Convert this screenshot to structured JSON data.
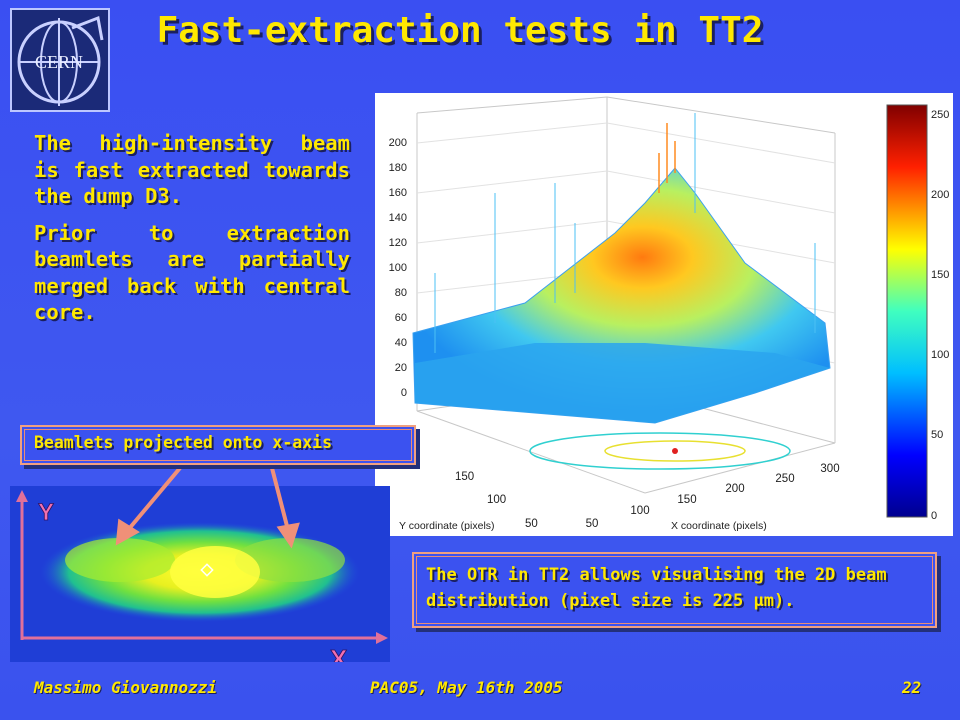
{
  "title": "Fast-extraction tests in TT2",
  "logo": {
    "text": "CERN"
  },
  "bullets": [
    "The high-intensity beam is fast extracted towards the dump D3.",
    "Prior to extraction beamlets are partially merged back with central core."
  ],
  "callouts": {
    "beamlets": "Beamlets projected onto x-axis",
    "otr": "The OTR in TT2 allows visualising the 2D beam distribution (pixel size is 225 μm)."
  },
  "beam_image": {
    "y_label": "Y",
    "x_label": "X"
  },
  "plot": {
    "z_ticks": [
      "200",
      "180",
      "160",
      "140",
      "120",
      "100",
      "80",
      "60",
      "40",
      "20",
      "0"
    ],
    "y_ticks": [
      "150",
      "100",
      "50"
    ],
    "x_ticks": [
      "50",
      "100",
      "150",
      "200",
      "250",
      "300"
    ],
    "y_axis_label": "Y coordinate (pixels)",
    "x_axis_label": "X coordinate (pixels)",
    "colorbar_ticks": [
      "250",
      "200",
      "150",
      "100",
      "50",
      "0"
    ]
  },
  "footer": {
    "author": "Massimo Giovannozzi",
    "event": "PAC05, May 16th 2005",
    "page": "22"
  }
}
